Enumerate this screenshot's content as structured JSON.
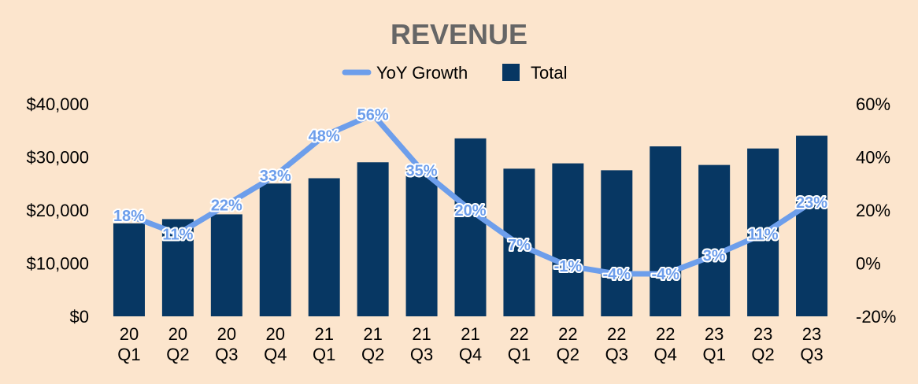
{
  "chart_data": {
    "type": "bar",
    "title": "REVENUE",
    "legend": [
      {
        "name": "YoY Growth",
        "kind": "line"
      },
      {
        "name": "Total",
        "kind": "bar"
      }
    ],
    "categories": [
      [
        "20",
        "Q1"
      ],
      [
        "20",
        "Q2"
      ],
      [
        "20",
        "Q3"
      ],
      [
        "20",
        "Q4"
      ],
      [
        "21",
        "Q1"
      ],
      [
        "21",
        "Q2"
      ],
      [
        "21",
        "Q3"
      ],
      [
        "21",
        "Q4"
      ],
      [
        "22",
        "Q1"
      ],
      [
        "22",
        "Q2"
      ],
      [
        "22",
        "Q3"
      ],
      [
        "22",
        "Q4"
      ],
      [
        "23",
        "Q1"
      ],
      [
        "23",
        "Q2"
      ],
      [
        "23",
        "Q3"
      ]
    ],
    "series": [
      {
        "name": "Total",
        "type": "bar",
        "axis": "left",
        "values": [
          17500,
          18300,
          19200,
          25000,
          26000,
          29000,
          27500,
          33500,
          27800,
          28800,
          27500,
          32000,
          28500,
          31600,
          34000
        ]
      },
      {
        "name": "YoY Growth",
        "type": "line",
        "axis": "right",
        "values": [
          18,
          11,
          22,
          33,
          48,
          56,
          35,
          20,
          7,
          -1,
          -4,
          -4,
          3,
          11,
          23
        ],
        "labels": [
          "18%",
          "11%",
          "22%",
          "33%",
          "48%",
          "56%",
          "35%",
          "20%",
          "7%",
          "-1%",
          "-4%",
          "-4%",
          "3%",
          "11%",
          "23%"
        ]
      }
    ],
    "left_axis": {
      "ylim": [
        0,
        40000
      ],
      "ticks": [
        0,
        10000,
        20000,
        30000,
        40000
      ],
      "tick_labels": [
        "$0",
        "$10,000",
        "$20,000",
        "$30,000",
        "$40,000"
      ]
    },
    "right_axis": {
      "ylim": [
        -20,
        60
      ],
      "ticks": [
        -20,
        0,
        20,
        40,
        60
      ],
      "tick_labels": [
        "-20%",
        "0%",
        "20%",
        "40%",
        "60%"
      ]
    },
    "grid": false
  },
  "colors": {
    "background": "#fce5cd",
    "bar": "#073763",
    "line": "#6d9eeb",
    "title": "#666666",
    "label": "#6d9eeb"
  }
}
